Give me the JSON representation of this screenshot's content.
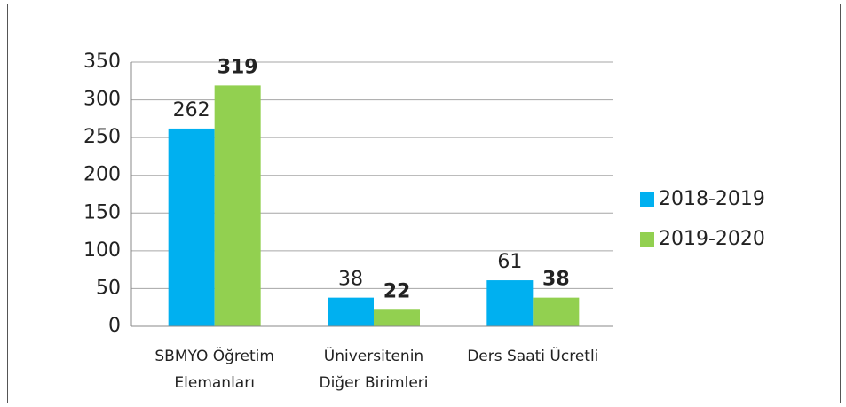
{
  "chart_data": {
    "type": "bar",
    "categories": [
      "SBMYO Öğretim\nElemanları",
      "Üniversitenin\nDiğer Birimleri",
      "Ders Saati Ücretli"
    ],
    "series": [
      {
        "name": "2018-2019",
        "color": "#00b0f0",
        "values": [
          262,
          38,
          61
        ],
        "label_bold": false
      },
      {
        "name": "2019-2020",
        "color": "#92d050",
        "values": [
          319,
          22,
          38
        ],
        "label_bold": true
      }
    ],
    "ylim": [
      0,
      350
    ],
    "yticks": [
      0,
      50,
      100,
      150,
      200,
      250,
      300,
      350
    ],
    "grid": true,
    "legend": "right"
  }
}
